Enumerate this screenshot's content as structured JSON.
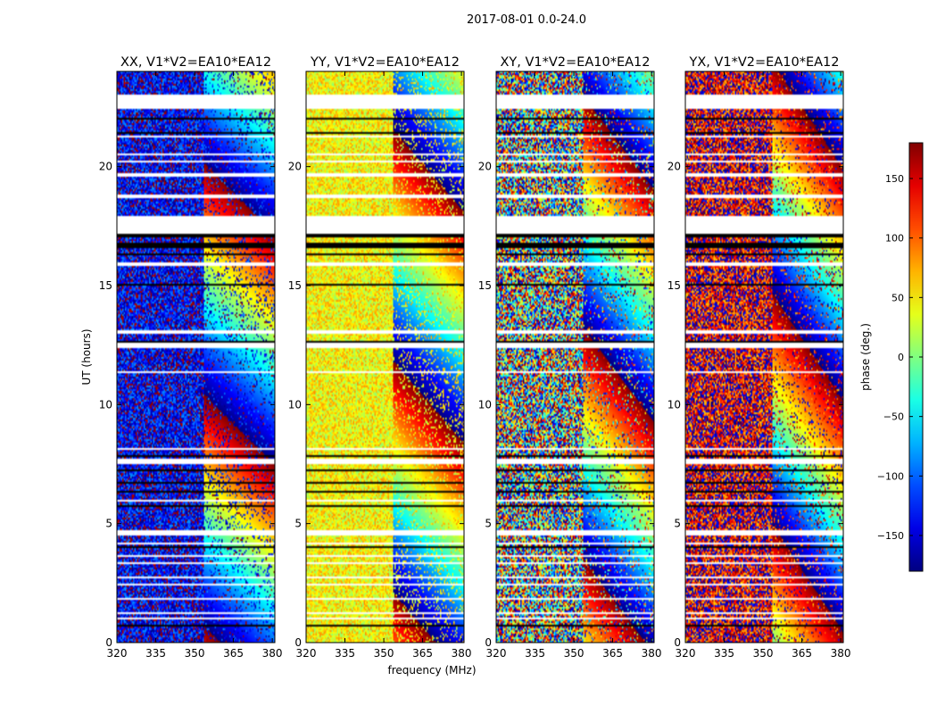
{
  "figure": {
    "suptitle": "2017-08-01 0.0-24.0"
  },
  "chart_data": {
    "type": "heatmap",
    "xlabel": "frequency (MHz)",
    "ylabel": "UT (hours)",
    "xlim": [
      320,
      381
    ],
    "ylim": [
      0,
      24
    ],
    "xticks": [
      320,
      335,
      350,
      365,
      380
    ],
    "yticks": [
      0,
      5,
      10,
      15,
      20
    ],
    "panels": [
      {
        "title": "XX, V1*V2=EA10*EA12",
        "base_phase": -140,
        "noise": 60
      },
      {
        "title": "YY, V1*V2=EA10*EA12",
        "base_phase": 45,
        "noise": 40
      },
      {
        "title": "XY, V1*V2=EA10*EA12",
        "base_phase": 0,
        "noise": 180
      },
      {
        "title": "YX, V1*V2=EA10*EA12",
        "base_phase": 150,
        "noise": 90
      }
    ],
    "colorbar": {
      "label": "phase (deg.)",
      "colormap": "jet",
      "range": [
        -180,
        180
      ],
      "ticks": [
        150,
        100,
        50,
        0,
        -50,
        -100,
        -150
      ],
      "tick_labels": [
        "150",
        "100",
        "50",
        "0",
        "−50",
        "−100",
        "−150"
      ]
    },
    "flagged_ut_bands": [
      [
        22.4,
        23.0
      ],
      [
        21.2,
        21.3
      ],
      [
        21.05,
        21.1
      ],
      [
        20.5,
        20.55
      ],
      [
        20.2,
        20.25
      ],
      [
        19.6,
        19.75
      ],
      [
        18.7,
        18.8
      ],
      [
        17.2,
        17.9
      ],
      [
        15.8,
        15.95
      ],
      [
        13.0,
        13.1
      ],
      [
        12.4,
        12.6
      ],
      [
        11.3,
        11.4
      ],
      [
        8.1,
        8.2
      ],
      [
        7.5,
        7.7
      ],
      [
        5.95,
        6.0
      ],
      [
        4.5,
        4.7
      ],
      [
        4.1,
        4.2
      ],
      [
        3.6,
        3.7
      ],
      [
        3.3,
        3.4
      ],
      [
        2.7,
        2.8
      ],
      [
        2.4,
        2.45
      ],
      [
        1.8,
        1.85
      ],
      [
        1.2,
        1.25
      ],
      [
        1.0,
        1.05
      ],
      [
        0.5,
        0.55
      ]
    ],
    "black_ut_bands": [
      [
        23.0,
        23.05
      ],
      [
        22.0,
        22.05
      ],
      [
        21.4,
        21.45
      ],
      [
        20.3,
        20.32
      ],
      [
        17.6,
        17.65
      ],
      [
        17.0,
        17.3
      ],
      [
        16.55,
        16.8
      ],
      [
        16.3,
        16.32
      ],
      [
        15.5,
        15.55
      ],
      [
        15.0,
        15.05
      ],
      [
        14.3,
        14.35
      ],
      [
        13.4,
        13.45
      ],
      [
        12.5,
        12.7
      ],
      [
        7.8,
        7.85
      ],
      [
        7.2,
        7.25
      ],
      [
        6.7,
        6.75
      ],
      [
        6.3,
        6.35
      ],
      [
        5.7,
        5.75
      ],
      [
        4.0,
        4.02
      ],
      [
        2.1,
        2.12
      ],
      [
        0.7,
        0.72
      ],
      [
        0.2,
        0.25
      ]
    ]
  }
}
